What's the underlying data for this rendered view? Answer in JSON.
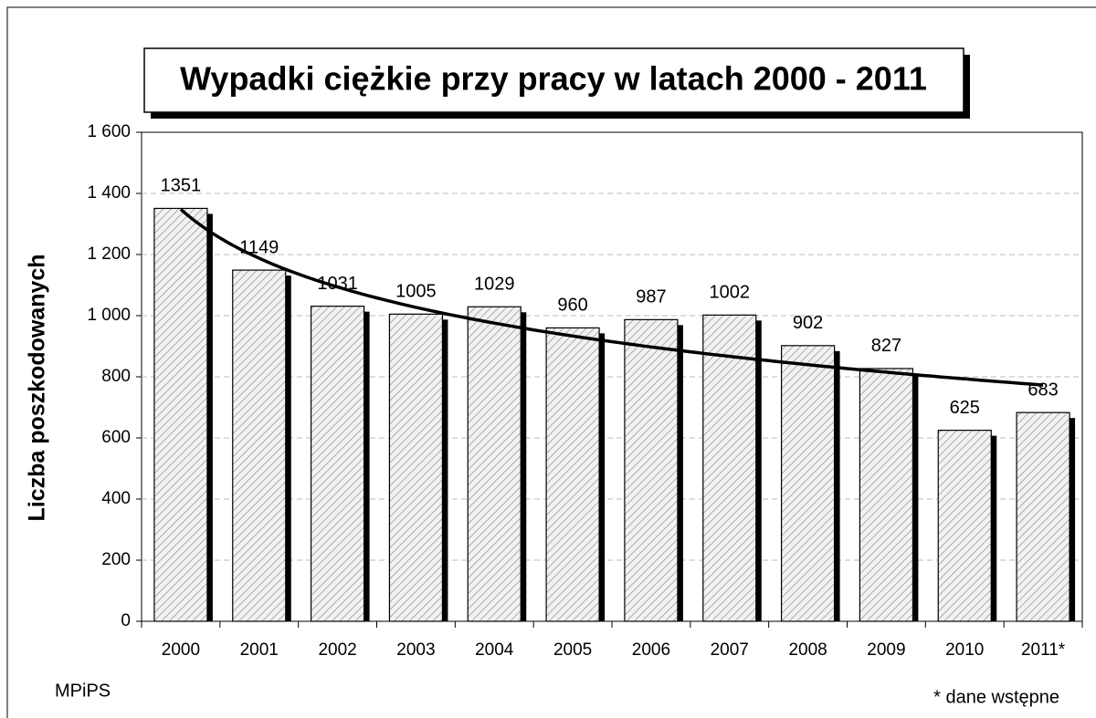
{
  "chart_data": {
    "type": "bar",
    "title": "Wypadki ciężkie przy pracy w latach 2000 - 2011",
    "y_label": "Liczba poszkodowanych",
    "categories": [
      "2000",
      "2001",
      "2002",
      "2003",
      "2004",
      "2005",
      "2006",
      "2007",
      "2008",
      "2009",
      "2010",
      "2011*"
    ],
    "values": [
      1351,
      1149,
      1031,
      1005,
      1029,
      960,
      987,
      1002,
      902,
      827,
      625,
      683
    ],
    "color": "#d9d9d9",
    "trendline": "logarithmic",
    "ylim": [
      0,
      1600
    ],
    "yticks": [
      0,
      200,
      400,
      600,
      800,
      {
        "value": 1000,
        "label": "1 000"
      },
      {
        "value": 1200,
        "label": "1 200"
      },
      {
        "value": 1400,
        "label": "1 400"
      },
      {
        "value": 1600,
        "label": "1 600"
      }
    ],
    "grid": true,
    "source": "MPiPS",
    "footnote": "* dane wstępne"
  }
}
